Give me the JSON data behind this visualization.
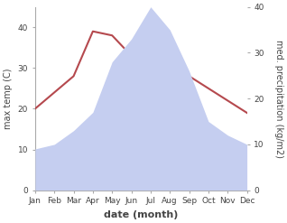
{
  "months": [
    "Jan",
    "Feb",
    "Mar",
    "Apr",
    "May",
    "Jun",
    "Jul",
    "Aug",
    "Sep",
    "Oct",
    "Nov",
    "Dec"
  ],
  "temperature": [
    20,
    24,
    28,
    39,
    38,
    33,
    32,
    36,
    28,
    25,
    22,
    19
  ],
  "precipitation": [
    9,
    10,
    13,
    17,
    28,
    33,
    40,
    35,
    26,
    15,
    12,
    10
  ],
  "temp_color": "#b5494e",
  "precip_fill_color": "#c5cef0",
  "xlabel": "date (month)",
  "ylabel_left": "max temp (C)",
  "ylabel_right": "med. precipitation (kg/m2)",
  "ylim_left": [
    0,
    45
  ],
  "ylim_right": [
    0,
    40
  ],
  "yticks_left": [
    0,
    10,
    20,
    30,
    40
  ],
  "yticks_right": [
    0,
    10,
    20,
    30,
    40
  ],
  "background_color": "#ffffff",
  "spine_color": "#aaaaaa",
  "tick_label_color": "#444444",
  "label_fontsize": 7,
  "xlabel_fontsize": 8,
  "tick_fontsize": 6.5
}
